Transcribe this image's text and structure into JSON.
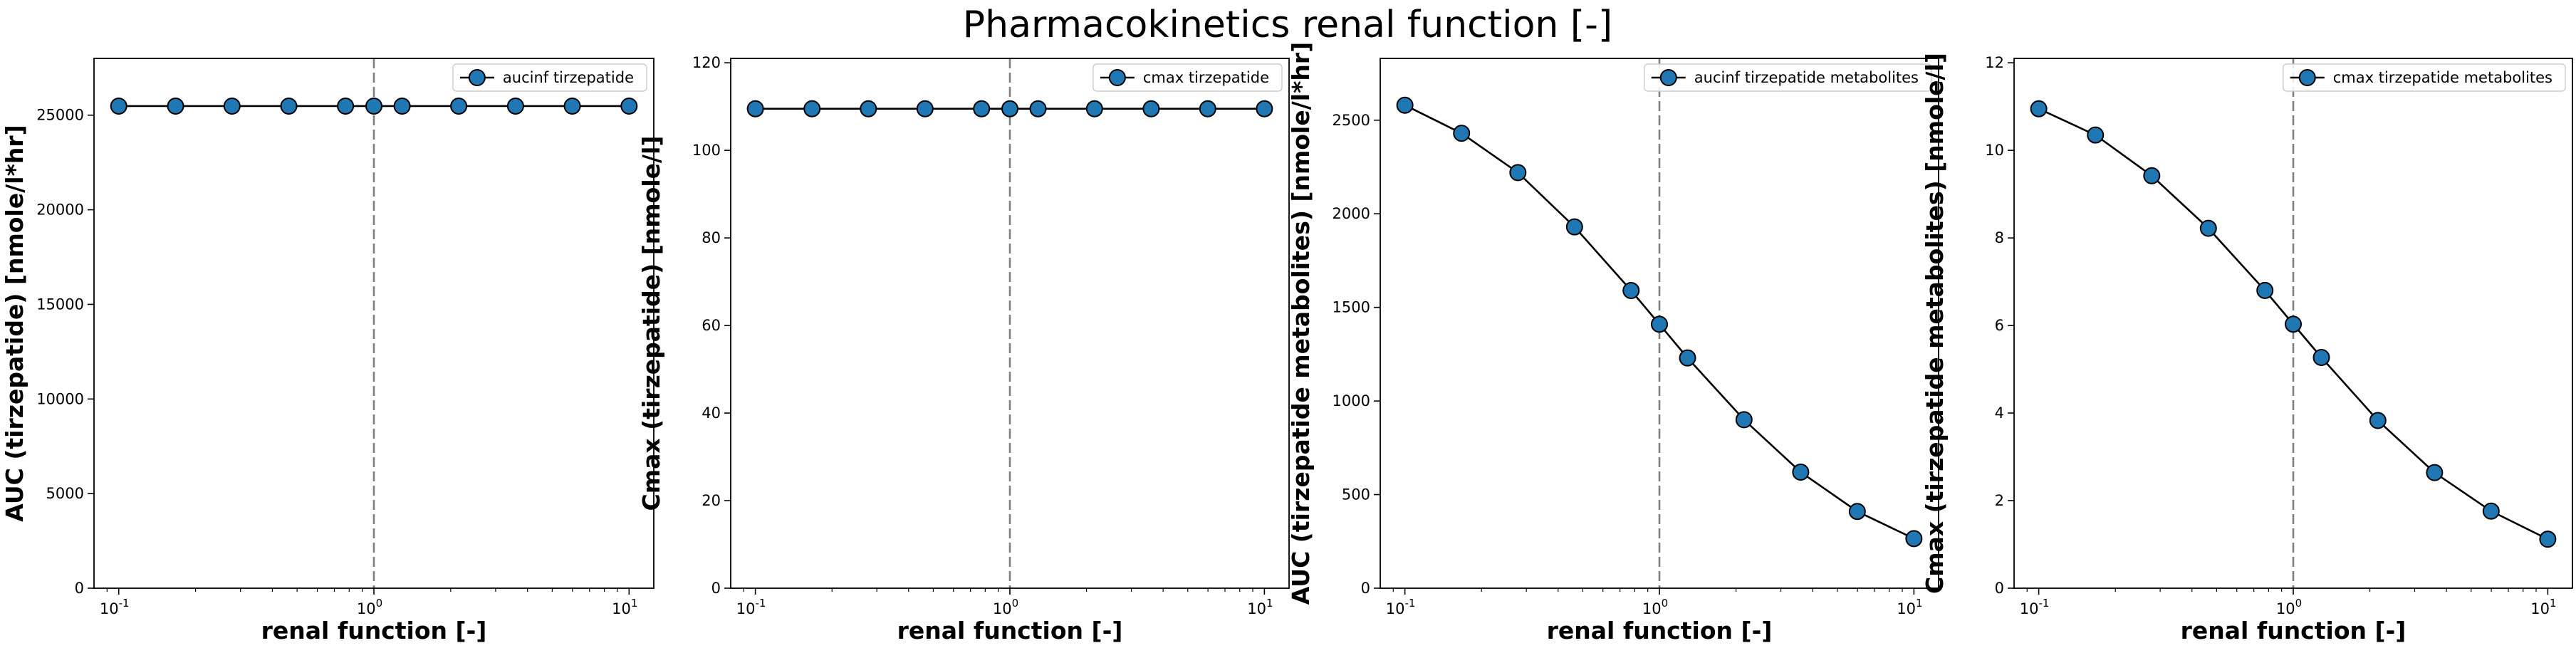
{
  "figure_title": "Pharmacokinetics renal function [-]",
  "colors": {
    "marker_fill": "#1f77b4",
    "marker_edge": "#000000",
    "line": "#000000",
    "reference_line": "#808080"
  },
  "chart_data": [
    {
      "type": "line",
      "xscale": "log",
      "xlim": [
        0.08,
        12.5
      ],
      "ylim": [
        0,
        28000
      ],
      "xlabel": "renal function [-]",
      "ylabel": "AUC (tirzepatide) [nmole/l*hr]",
      "x_ticks": [
        0.1,
        1,
        10
      ],
      "x_tick_labels": [
        "10",
        "10",
        "10"
      ],
      "x_tick_exponents": [
        "-1",
        "0",
        "1"
      ],
      "y_ticks": [
        0,
        5000,
        10000,
        15000,
        20000,
        25000
      ],
      "y_tick_labels": [
        "0",
        "5000",
        "10000",
        "15000",
        "20000",
        "25000"
      ],
      "reference_x": 1,
      "legend_position": "upper right",
      "series": [
        {
          "name": "aucinf tirzepatide",
          "x": [
            0.1,
            0.167,
            0.278,
            0.464,
            0.774,
            1.0,
            1.29,
            2.15,
            3.59,
            5.99,
            10
          ],
          "y": [
            25480,
            25480,
            25480,
            25480,
            25480,
            25480,
            25480,
            25480,
            25480,
            25480,
            25480
          ]
        }
      ]
    },
    {
      "type": "line",
      "xscale": "log",
      "xlim": [
        0.08,
        12.5
      ],
      "ylim": [
        0,
        121
      ],
      "xlabel": "renal function [-]",
      "ylabel": "Cmax (tirzepatide) [nmole/l]",
      "x_ticks": [
        0.1,
        1,
        10
      ],
      "x_tick_labels": [
        "10",
        "10",
        "10"
      ],
      "x_tick_exponents": [
        "-1",
        "0",
        "1"
      ],
      "y_ticks": [
        0,
        20,
        40,
        60,
        80,
        100,
        120
      ],
      "y_tick_labels": [
        "0",
        "20",
        "40",
        "60",
        "80",
        "100",
        "120"
      ],
      "reference_x": 1,
      "legend_position": "upper right",
      "series": [
        {
          "name": "cmax tirzepatide",
          "x": [
            0.1,
            0.167,
            0.278,
            0.464,
            0.774,
            1.0,
            1.29,
            2.15,
            3.59,
            5.99,
            10
          ],
          "y": [
            109.5,
            109.5,
            109.5,
            109.5,
            109.5,
            109.5,
            109.5,
            109.5,
            109.5,
            109.5,
            109.5
          ]
        }
      ]
    },
    {
      "type": "line",
      "xscale": "log",
      "xlim": [
        0.08,
        12.5
      ],
      "ylim": [
        0,
        2830
      ],
      "xlabel": "renal function [-]",
      "ylabel": "AUC (tirzepatide metabolites) [nmole/l*hr]",
      "x_ticks": [
        0.1,
        1,
        10
      ],
      "x_tick_labels": [
        "10",
        "10",
        "10"
      ],
      "x_tick_exponents": [
        "-1",
        "0",
        "1"
      ],
      "y_ticks": [
        0,
        500,
        1000,
        1500,
        2000,
        2500
      ],
      "y_tick_labels": [
        "0",
        "500",
        "1000",
        "1500",
        "2000",
        "2500"
      ],
      "reference_x": 1,
      "legend_position": "upper right",
      "series": [
        {
          "name": "aucinf tirzepatide metabolites",
          "x": [
            0.1,
            0.167,
            0.278,
            0.464,
            0.774,
            1.0,
            1.29,
            2.15,
            3.59,
            5.99,
            10
          ],
          "y": [
            2580,
            2430,
            2220,
            1930,
            1590,
            1410,
            1230,
            900,
            620,
            410,
            265
          ]
        }
      ]
    },
    {
      "type": "line",
      "xscale": "log",
      "xlim": [
        0.08,
        12.5
      ],
      "ylim": [
        0,
        12.1
      ],
      "xlabel": "renal function [-]",
      "ylabel": "Cmax (tirzepatide metabolites) [nmole/l]",
      "x_ticks": [
        0.1,
        1,
        10
      ],
      "x_tick_labels": [
        "10",
        "10",
        "10"
      ],
      "x_tick_exponents": [
        "-1",
        "0",
        "1"
      ],
      "y_ticks": [
        0,
        2,
        4,
        6,
        8,
        10,
        12
      ],
      "y_tick_labels": [
        "0",
        "2",
        "4",
        "6",
        "8",
        "10",
        "12"
      ],
      "reference_x": 1,
      "legend_position": "upper right",
      "series": [
        {
          "name": "cmax tirzepatide metabolites",
          "x": [
            0.1,
            0.167,
            0.278,
            0.464,
            0.774,
            1.0,
            1.29,
            2.15,
            3.59,
            5.99,
            10
          ],
          "y": [
            10.95,
            10.35,
            9.42,
            8.22,
            6.8,
            6.03,
            5.27,
            3.83,
            2.64,
            1.76,
            1.12
          ]
        }
      ]
    }
  ]
}
